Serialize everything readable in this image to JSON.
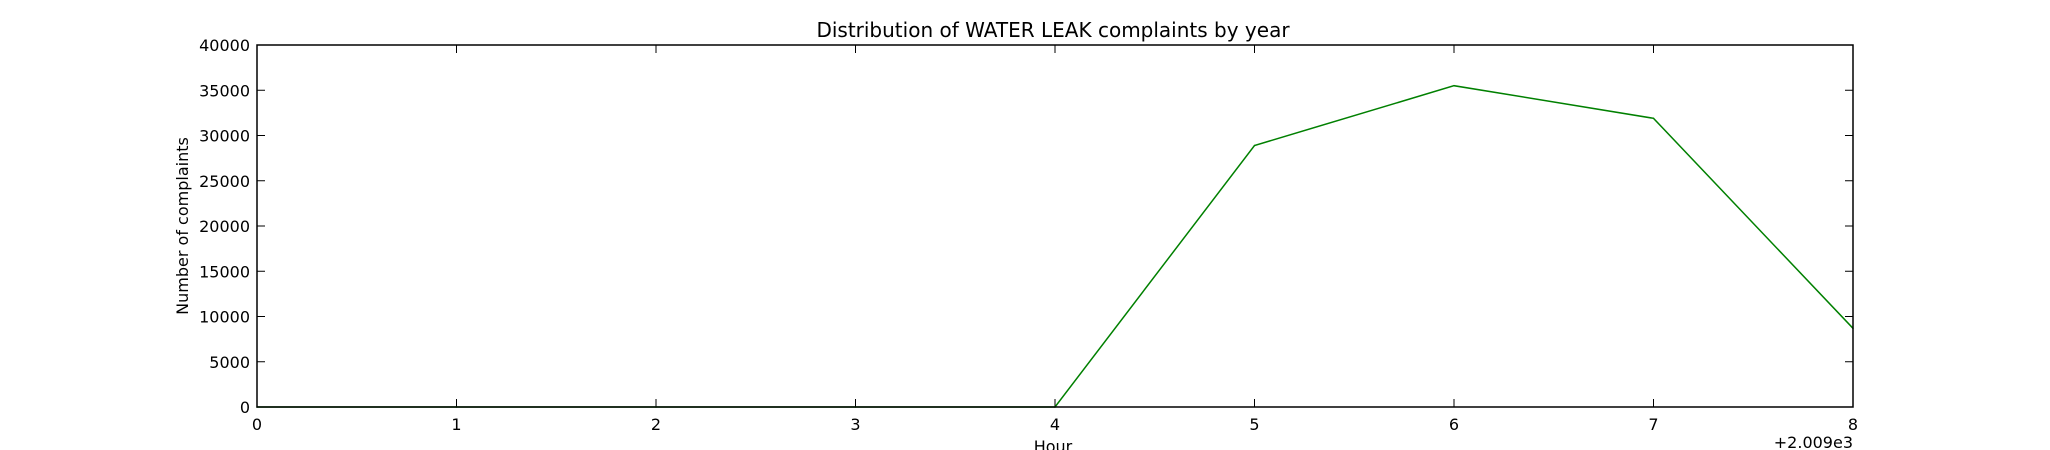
{
  "chart_data": {
    "type": "line",
    "title": "Distribution of  WATER LEAK complaints by year",
    "xlabel": "Hour",
    "ylabel": "Number of complaints",
    "x_offset_label": "+2.009e3",
    "xlim": [
      0,
      8
    ],
    "ylim": [
      0,
      40000
    ],
    "xticks": [
      "0",
      "1",
      "2",
      "3",
      "4",
      "5",
      "6",
      "7",
      "8"
    ],
    "yticks": [
      "0",
      "5000",
      "10000",
      "15000",
      "20000",
      "25000",
      "30000",
      "35000",
      "40000"
    ],
    "grid": false,
    "series": [
      {
        "color": "#008000",
        "x": [
          0,
          1,
          2,
          3,
          4,
          5,
          6,
          7,
          8
        ],
        "y": [
          0,
          0,
          0,
          0,
          0,
          28900,
          35500,
          31900,
          8700
        ]
      }
    ]
  }
}
